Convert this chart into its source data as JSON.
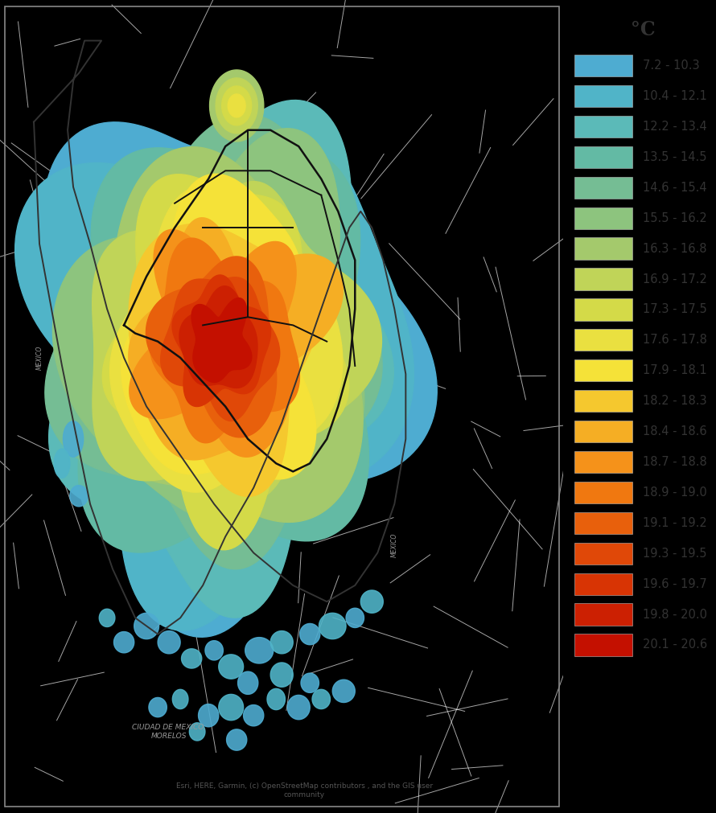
{
  "title": "°C",
  "legend_labels": [
    "7.2 - 10.3",
    "10.4 - 12.1",
    "12.2 - 13.4",
    "13.5 - 14.5",
    "14.6 - 15.4",
    "15.5 - 16.2",
    "16.3 - 16.8",
    "16.9 - 17.2",
    "17.3 - 17.5",
    "17.6 - 17.8",
    "17.9 - 18.1",
    "18.2 - 18.3",
    "18.4 - 18.6",
    "18.7 - 18.8",
    "18.9 - 19.0",
    "19.1 - 19.2",
    "19.3 - 19.5",
    "19.6 - 19.7",
    "19.8 - 20.0",
    "20.1 - 20.6"
  ],
  "legend_colors": [
    "#4EACD1",
    "#50B4C8",
    "#5BBAB8",
    "#63BAA4",
    "#75BD94",
    "#8DC47E",
    "#A4C96C",
    "#C0D458",
    "#D4DA48",
    "#EAE040",
    "#F5E238",
    "#F5C82E",
    "#F5AE24",
    "#F5921A",
    "#F07810",
    "#E8600C",
    "#E04808",
    "#D83404",
    "#CC2002",
    "#C41000"
  ],
  "map_bg_color": "#E4E4E4",
  "legend_bg_color": "#FFFFFF",
  "title_color": "#333333",
  "label_color": "#333333",
  "attribution_text": "Esri, HERE, Garmin, (c) OpenStreetMap contributors , and the GIS user\ncommunity",
  "figsize": [
    8.9,
    10.11
  ],
  "dpi": 100,
  "title_fontsize": 17,
  "label_fontsize": 10.5,
  "attribution_fontsize": 6.5
}
